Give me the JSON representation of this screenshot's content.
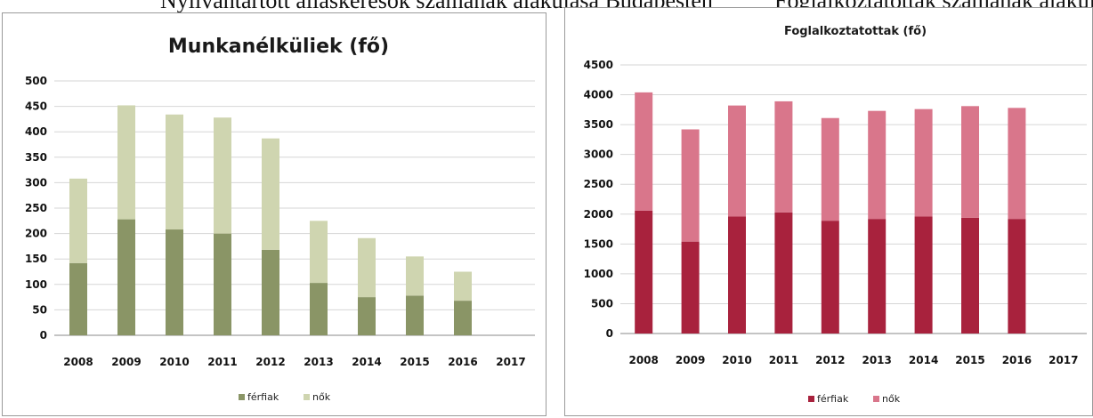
{
  "caption": {
    "left": "Nyilvántartott álláskeresők számának alakulása Budapesten",
    "right": "Foglalkoztatottak számának alakulása"
  },
  "chart_data": [
    {
      "type": "bar",
      "stacked": true,
      "title": "Munkanélküliek (fő)",
      "categories": [
        "2008",
        "2009",
        "2010",
        "2011",
        "2012",
        "2013",
        "2014",
        "2015",
        "2016",
        "2017"
      ],
      "series": [
        {
          "name": "férfiak",
          "values": [
            142,
            228,
            208,
            200,
            168,
            103,
            75,
            78,
            68,
            null
          ],
          "color": "#8a9566"
        },
        {
          "name": "nők",
          "values": [
            166,
            224,
            226,
            228,
            219,
            122,
            116,
            77,
            57,
            null
          ],
          "color": "#cfd5b0"
        }
      ],
      "ylim": [
        0,
        500
      ],
      "yticks": [
        0,
        50,
        100,
        150,
        200,
        250,
        300,
        350,
        400,
        450,
        500
      ],
      "grid": true,
      "legend": "bottom"
    },
    {
      "type": "bar",
      "stacked": true,
      "title": "Foglalkoztatottak (fő)",
      "categories": [
        "2008",
        "2009",
        "2010",
        "2011",
        "2012",
        "2013",
        "2014",
        "2015",
        "2016",
        "2017"
      ],
      "series": [
        {
          "name": "férfiak",
          "values": [
            2060,
            1540,
            1960,
            2030,
            1890,
            1920,
            1960,
            1940,
            1920,
            null
          ],
          "color": "#a8223d"
        },
        {
          "name": "nők",
          "values": [
            1980,
            1880,
            1860,
            1860,
            1720,
            1810,
            1800,
            1870,
            1860,
            null
          ],
          "color": "#d9768b"
        }
      ],
      "ylim": [
        0,
        4500
      ],
      "yticks": [
        0,
        500,
        1000,
        1500,
        2000,
        2500,
        3000,
        3500,
        4000,
        4500
      ],
      "grid": true,
      "legend": "bottom"
    }
  ]
}
